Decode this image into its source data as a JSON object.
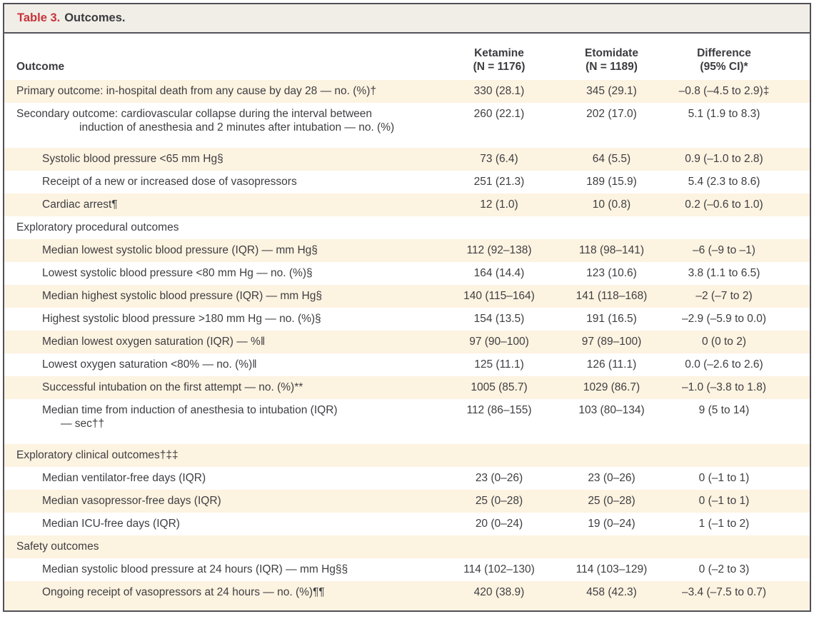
{
  "table": {
    "title_label": "Table 3.",
    "title_text": "Outcomes.",
    "columns": {
      "outcome": "Outcome",
      "ketamine_line1": "Ketamine",
      "ketamine_line2": "(N = 1176)",
      "etomidate_line1": "Etomidate",
      "etomidate_line2": "(N = 1189)",
      "difference_line1": "Difference",
      "difference_line2": "(95% CI)*"
    },
    "rows": [
      {
        "label": "Primary outcome: in-hospital death from any cause by day 28 — no. (%)†",
        "indent": 0,
        "shaded": true,
        "ketamine": "330 (28.1)",
        "etomidate": "345 (29.1)",
        "difference": "–0.8 (–4.5 to 2.9)‡"
      },
      {
        "label": "Secondary outcome: cardiovascular collapse during the interval between",
        "label2": "induction of anesthesia and 2 minutes after intubation — no. (%)",
        "indent": 0,
        "shaded": false,
        "ketamine": "260 (22.1)",
        "etomidate": "202 (17.0)",
        "difference": "5.1 (1.9 to 8.3)"
      },
      {
        "label": "Systolic blood pressure <65 mm Hg§",
        "indent": 1,
        "shaded": true,
        "ketamine": "73 (6.4)",
        "etomidate": "64 (5.5)",
        "difference": "0.9 (–1.0 to 2.8)"
      },
      {
        "label": "Receipt of a new or increased dose of vasopressors",
        "indent": 1,
        "shaded": false,
        "ketamine": "251 (21.3)",
        "etomidate": "189 (15.9)",
        "difference": "5.4 (2.3 to 8.6)"
      },
      {
        "label": "Cardiac arrest¶",
        "indent": 1,
        "shaded": true,
        "ketamine": "12 (1.0)",
        "etomidate": "10 (0.8)",
        "difference": "0.2 (–0.6 to 1.0)"
      },
      {
        "label": "Exploratory procedural outcomes",
        "indent": 0,
        "shaded": false,
        "ketamine": "",
        "etomidate": "",
        "difference": ""
      },
      {
        "label": "Median lowest systolic blood pressure (IQR) — mm Hg§",
        "indent": 1,
        "shaded": true,
        "ketamine": "112 (92–138)",
        "etomidate": "118 (98–141)",
        "difference": "–6 (–9 to –1)"
      },
      {
        "label": "Lowest systolic blood pressure <80 mm Hg — no. (%)§",
        "indent": 1,
        "shaded": false,
        "ketamine": "164 (14.4)",
        "etomidate": "123 (10.6)",
        "difference": "3.8 (1.1 to 6.5)"
      },
      {
        "label": "Median highest systolic blood pressure (IQR) — mm Hg§",
        "indent": 1,
        "shaded": true,
        "ketamine": "140 (115–164)",
        "etomidate": "141 (118–168)",
        "difference": "–2 (–7 to 2)"
      },
      {
        "label": "Highest systolic blood pressure >180 mm Hg — no. (%)§",
        "indent": 1,
        "shaded": false,
        "ketamine": "154 (13.5)",
        "etomidate": "191 (16.5)",
        "difference": "–2.9 (–5.9 to 0.0)"
      },
      {
        "label": "Median lowest oxygen saturation (IQR) — %‖",
        "indent": 1,
        "shaded": true,
        "ketamine": "97 (90–100)",
        "etomidate": "97 (89–100)",
        "difference": "0 (0 to 2)"
      },
      {
        "label": "Lowest oxygen saturation <80% — no. (%)‖",
        "indent": 1,
        "shaded": false,
        "ketamine": "125 (11.1)",
        "etomidate": "126 (11.1)",
        "difference": "0.0 (–2.6 to 2.6)"
      },
      {
        "label": "Successful intubation on the first attempt — no. (%)**",
        "indent": 1,
        "shaded": true,
        "ketamine": "1005 (85.7)",
        "etomidate": "1029 (86.7)",
        "difference": "–1.0 (–3.8 to 1.8)"
      },
      {
        "label": "Median time from induction of anesthesia to intubation (IQR)",
        "label2": "— sec††",
        "indent": 1,
        "shaded": false,
        "ketamine": "112 (86–155)",
        "etomidate": "103 (80–134)",
        "difference": "9 (5 to 14)"
      },
      {
        "label": "Exploratory clinical outcomes†‡‡",
        "indent": 0,
        "shaded": true,
        "ketamine": "",
        "etomidate": "",
        "difference": ""
      },
      {
        "label": "Median ventilator-free days (IQR)",
        "indent": 1,
        "shaded": false,
        "ketamine": "23 (0–26)",
        "etomidate": "23 (0–26)",
        "difference": "0 (–1 to 1)"
      },
      {
        "label": "Median vasopressor-free days (IQR)",
        "indent": 1,
        "shaded": true,
        "ketamine": "25 (0–28)",
        "etomidate": "25 (0–28)",
        "difference": "0 (–1 to 1)"
      },
      {
        "label": "Median ICU-free days (IQR)",
        "indent": 1,
        "shaded": false,
        "ketamine": "20 (0–24)",
        "etomidate": "19 (0–24)",
        "difference": "1 (–1 to 2)"
      },
      {
        "label": "Safety outcomes",
        "indent": 0,
        "shaded": true,
        "ketamine": "",
        "etomidate": "",
        "difference": ""
      },
      {
        "label": "Median systolic blood pressure at 24 hours (IQR) — mm Hg§§",
        "indent": 1,
        "shaded": false,
        "ketamine": "114 (102–130)",
        "etomidate": "114 (103–129)",
        "difference": "0 (–2 to 3)"
      },
      {
        "label": "Ongoing receipt of vasopressors at 24 hours — no. (%)¶¶",
        "indent": 1,
        "shaded": true,
        "ketamine": "420 (38.9)",
        "etomidate": "458 (42.3)",
        "difference": "–3.4 (–7.5 to 0.7)"
      }
    ]
  },
  "colors": {
    "accent_red": "#c9333a",
    "row_shade": "#fdf3e1",
    "title_bar_bg": "#f1eee7",
    "border": "#51515a",
    "text": "#3e3e42"
  }
}
